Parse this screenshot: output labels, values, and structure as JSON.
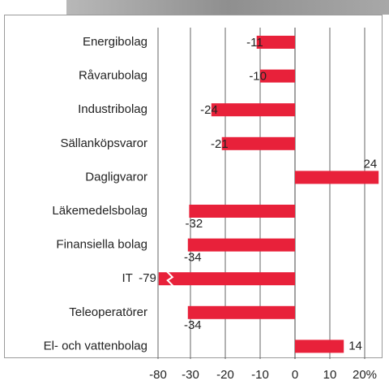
{
  "chart_data": {
    "type": "hbar",
    "categories": [
      "Energibolag",
      "Råvarubolag",
      "Industribolag",
      "Sällanköpsvaror",
      "Dagligvaror",
      "Läkemedelsbolag",
      "Finansiella bolag",
      "IT",
      "Teleoperatörer",
      "El- och vattenbolag"
    ],
    "values": [
      -11,
      -10,
      -24,
      -21,
      24,
      -32,
      -34,
      -79,
      -34,
      14
    ],
    "color": "#e8213a",
    "xlim": [
      -80,
      26
    ],
    "x_break": [
      -80,
      -30
    ],
    "xticks": [
      -80,
      -30,
      -20,
      -10,
      0,
      10,
      {
        "value": 20,
        "label": "20%"
      }
    ],
    "grid": true
  }
}
